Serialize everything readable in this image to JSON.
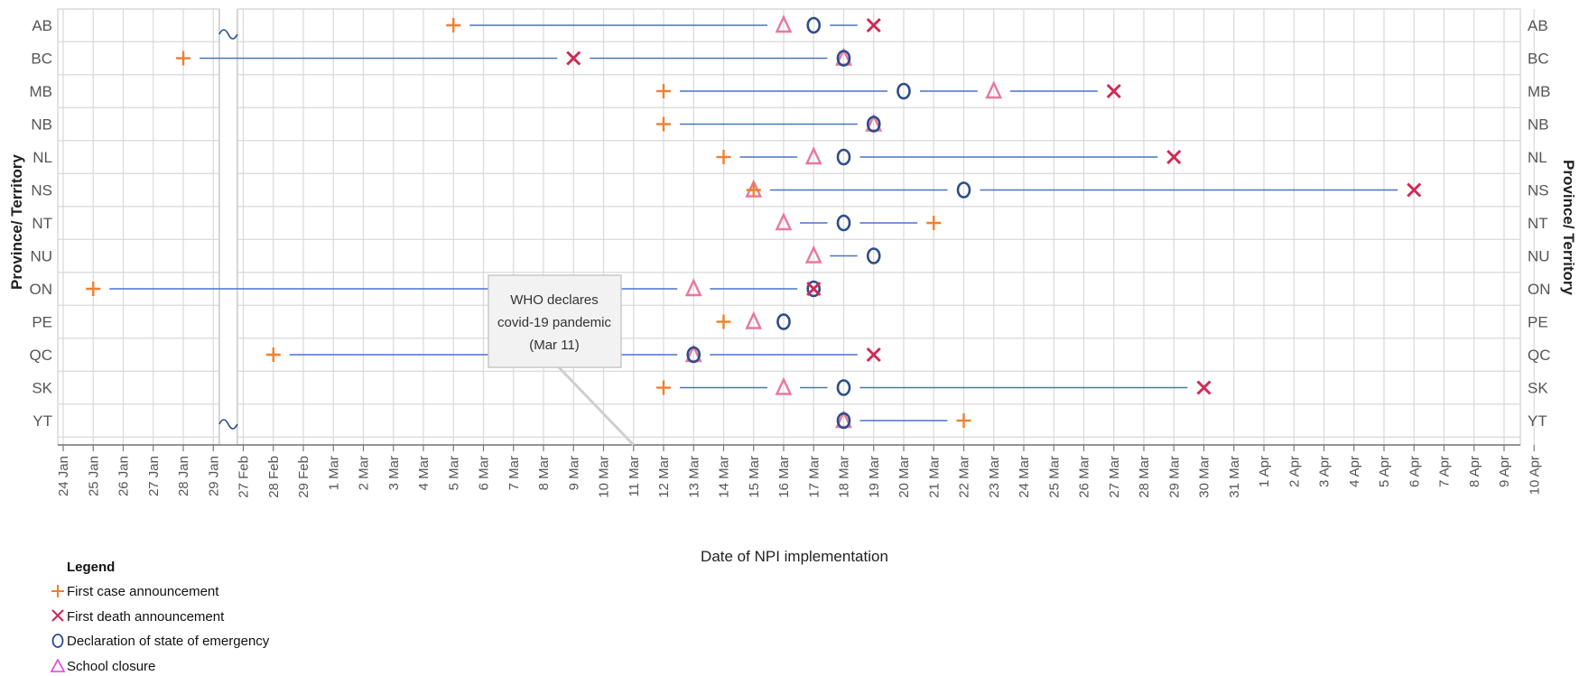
{
  "chart_data": {
    "type": "scatter",
    "xlabel": "Date of NPI implementation",
    "ylabel": "Province/ Territory",
    "x_ticks": [
      "24 Jan",
      "25 Jan",
      "26 Jan",
      "27 Jan",
      "28 Jan",
      "29 Jan",
      "27 Feb",
      "28 Feb",
      "29 Feb",
      "1 Mar",
      "2 Mar",
      "3 Mar",
      "4 Mar",
      "5 Mar",
      "6 Mar",
      "7 Mar",
      "8 Mar",
      "9 Mar",
      "10 Mar",
      "11 Mar",
      "12 Mar",
      "13 Mar",
      "14 Mar",
      "15 Mar",
      "16 Mar",
      "17 Mar",
      "18 Mar",
      "19 Mar",
      "20 Mar",
      "21 Mar",
      "22 Mar",
      "23 Mar",
      "24 Mar",
      "25 Mar",
      "26 Mar",
      "27 Mar",
      "28 Mar",
      "29 Mar",
      "30 Mar",
      "31 Mar",
      "1 Apr",
      "2 Apr",
      "3 Apr",
      "4 Apr",
      "5 Apr",
      "6 Apr",
      "7 Apr",
      "8 Apr",
      "9 Apr",
      "10 Apr"
    ],
    "categories": [
      "AB",
      "BC",
      "MB",
      "NB",
      "NL",
      "NS",
      "NT",
      "NU",
      "ON",
      "PE",
      "QC",
      "SK",
      "YT"
    ],
    "axis_break": {
      "after": "29 Jan",
      "before": "27 Feb"
    },
    "grid": true,
    "annotation": {
      "lines": [
        "WHO declares",
        "covid-19 pandemic",
        "(Mar 11)"
      ],
      "date": "11 Mar"
    },
    "series": [
      {
        "name": "First case announcement",
        "symbol": "plus",
        "color": "#F07F2E",
        "points": [
          [
            "AB",
            "5 Mar"
          ],
          [
            "BC",
            "28 Jan"
          ],
          [
            "MB",
            "12 Mar"
          ],
          [
            "NB",
            "12 Mar"
          ],
          [
            "NL",
            "14 Mar"
          ],
          [
            "NS",
            "15 Mar"
          ],
          [
            "NT",
            "21 Mar"
          ],
          [
            "ON",
            "25 Jan"
          ],
          [
            "PE",
            "14 Mar"
          ],
          [
            "QC",
            "28 Feb"
          ],
          [
            "SK",
            "12 Mar"
          ],
          [
            "YT",
            "22 Mar"
          ]
        ]
      },
      {
        "name": "First death announcement",
        "symbol": "x",
        "color": "#CF2A55",
        "points": [
          [
            "AB",
            "19 Mar"
          ],
          [
            "BC",
            "9 Mar"
          ],
          [
            "MB",
            "27 Mar"
          ],
          [
            "NL",
            "29 Mar"
          ],
          [
            "NS",
            "6 Apr"
          ],
          [
            "ON",
            "17 Mar"
          ],
          [
            "QC",
            "19 Mar"
          ],
          [
            "SK",
            "30 Mar"
          ]
        ]
      },
      {
        "name": "Declaration of state of emergency",
        "symbol": "circle",
        "color": "#2C4C8C",
        "points": [
          [
            "AB",
            "17 Mar"
          ],
          [
            "BC",
            "18 Mar"
          ],
          [
            "MB",
            "20 Mar"
          ],
          [
            "NB",
            "19 Mar"
          ],
          [
            "NL",
            "18 Mar"
          ],
          [
            "NS",
            "22 Mar"
          ],
          [
            "NT",
            "18 Mar"
          ],
          [
            "NU",
            "19 Mar"
          ],
          [
            "ON",
            "17 Mar"
          ],
          [
            "PE",
            "16 Mar"
          ],
          [
            "QC",
            "13 Mar"
          ],
          [
            "SK",
            "18 Mar"
          ],
          [
            "YT",
            "18 Mar"
          ]
        ]
      },
      {
        "name": "School closure",
        "symbol": "triangle",
        "color": "#E8789A",
        "points": [
          [
            "AB",
            "16 Mar"
          ],
          [
            "BC",
            "18 Mar"
          ],
          [
            "MB",
            "23 Mar"
          ],
          [
            "NB",
            "19 Mar"
          ],
          [
            "NL",
            "17 Mar"
          ],
          [
            "NS",
            "15 Mar"
          ],
          [
            "NT",
            "16 Mar"
          ],
          [
            "NU",
            "17 Mar"
          ],
          [
            "ON",
            "13 Mar"
          ],
          [
            "PE",
            "15 Mar"
          ],
          [
            "QC",
            "13 Mar"
          ],
          [
            "SK",
            "16 Mar"
          ],
          [
            "YT",
            "18 Mar"
          ]
        ]
      }
    ],
    "legend": {
      "title": "Legend",
      "position": "bottom-left"
    }
  },
  "colors": {
    "line": "#4A72C8",
    "grid": "#D9D9D9",
    "legend_triangle": "#E040E0"
  }
}
